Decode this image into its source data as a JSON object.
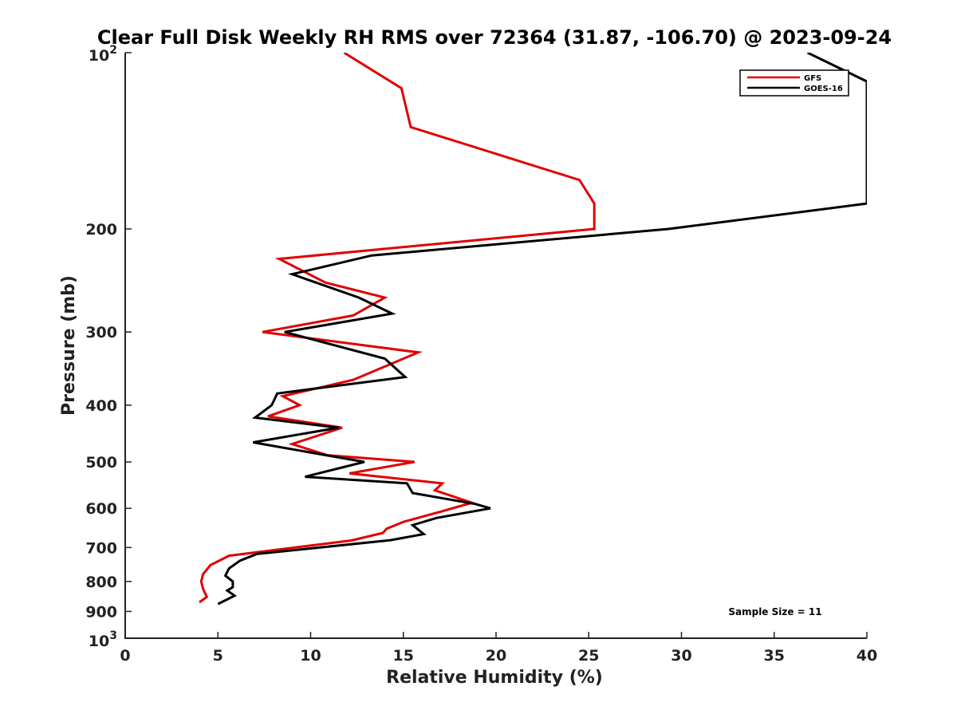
{
  "chart_data": {
    "type": "line",
    "title": "Clear Full Disk Weekly RH RMS over 72364 (31.87, -106.70) @ 2023-09-24",
    "xlabel": "Relative Humidity (%)",
    "ylabel": "Pressure (mb)",
    "xlim": [
      0,
      40
    ],
    "ylim": [
      100,
      1000
    ],
    "yscale": "log",
    "y_reversed": true,
    "grid": false,
    "legend_position": "top-right",
    "x_ticks": [
      "0",
      "5",
      "10",
      "15",
      "20",
      "25",
      "30",
      "35",
      "40"
    ],
    "x_tick_values": [
      0,
      5,
      10,
      15,
      20,
      25,
      30,
      35,
      40
    ],
    "y_ticks": [
      {
        "value": 200,
        "label": "200"
      },
      {
        "value": 300,
        "label": "300"
      },
      {
        "value": 400,
        "label": "400"
      },
      {
        "value": 500,
        "label": "500"
      },
      {
        "value": 600,
        "label": "600"
      },
      {
        "value": 700,
        "label": "700"
      },
      {
        "value": 800,
        "label": "800"
      },
      {
        "value": 900,
        "label": "900"
      }
    ],
    "y_tick_top": {
      "value": 100,
      "base": "10",
      "exp": "2"
    },
    "y_tick_bottom": {
      "value": 1000,
      "base": "10",
      "exp": "3"
    },
    "annotation": "Sample Size = 11",
    "series": [
      {
        "name": "GFS",
        "color": "#e00000",
        "points": [
          [
            11.8,
            100
          ],
          [
            14.9,
            115
          ],
          [
            15.4,
            134
          ],
          [
            24.5,
            165
          ],
          [
            25.3,
            181
          ],
          [
            25.3,
            200
          ],
          [
            8.3,
            225
          ],
          [
            10.8,
            247
          ],
          [
            14.0,
            262
          ],
          [
            12.3,
            281
          ],
          [
            7.4,
            300
          ],
          [
            15.8,
            325
          ],
          [
            12.3,
            362
          ],
          [
            8.5,
            386
          ],
          [
            9.4,
            400
          ],
          [
            7.7,
            418
          ],
          [
            11.7,
            437
          ],
          [
            9.0,
            466
          ],
          [
            10.9,
            487
          ],
          [
            15.6,
            500
          ],
          [
            12.1,
            523
          ],
          [
            17.1,
            544
          ],
          [
            16.7,
            559
          ],
          [
            18.7,
            587
          ],
          [
            17.0,
            608
          ],
          [
            15.0,
            633
          ],
          [
            14.1,
            650
          ],
          [
            13.9,
            661
          ],
          [
            12.2,
            681
          ],
          [
            5.6,
            723
          ],
          [
            4.6,
            750
          ],
          [
            4.2,
            777
          ],
          [
            4.1,
            800
          ],
          [
            4.2,
            824
          ],
          [
            4.4,
            850
          ],
          [
            4.0,
            868
          ]
        ]
      },
      {
        "name": "GOES-16",
        "color": "#000000",
        "points": [
          [
            36.8,
            100
          ],
          [
            40.0,
            112
          ],
          [
            40.0,
            181
          ],
          [
            29.3,
            200
          ],
          [
            13.3,
            222
          ],
          [
            9.0,
            239
          ],
          [
            12.6,
            262
          ],
          [
            14.4,
            279
          ],
          [
            8.6,
            300
          ],
          [
            14.0,
            333
          ],
          [
            15.1,
            358
          ],
          [
            8.2,
            382
          ],
          [
            7.9,
            400
          ],
          [
            7.0,
            420
          ],
          [
            11.5,
            437
          ],
          [
            6.9,
            463
          ],
          [
            12.9,
            500
          ],
          [
            9.7,
            530
          ],
          [
            15.2,
            544
          ],
          [
            15.5,
            565
          ],
          [
            18.9,
            590
          ],
          [
            19.7,
            600
          ],
          [
            16.8,
            623
          ],
          [
            15.5,
            641
          ],
          [
            16.1,
            664
          ],
          [
            14.3,
            680
          ],
          [
            7.1,
            718
          ],
          [
            6.2,
            737
          ],
          [
            5.6,
            760
          ],
          [
            5.4,
            782
          ],
          [
            5.8,
            800
          ],
          [
            5.8,
            818
          ],
          [
            5.5,
            829
          ],
          [
            5.9,
            846
          ],
          [
            5.0,
            874
          ]
        ]
      }
    ]
  }
}
